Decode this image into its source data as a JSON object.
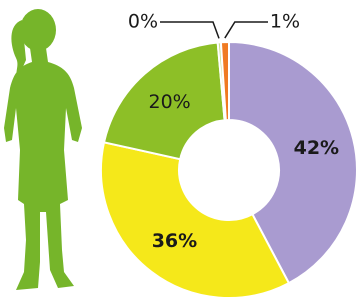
{
  "chart_data": {
    "type": "donut",
    "categories": [
      null,
      null,
      null,
      null,
      null
    ],
    "values": [
      42,
      36,
      20,
      0.4,
      1
    ],
    "value_labels": [
      "42%",
      "36%",
      "20%",
      "0%",
      "1%"
    ],
    "colors": [
      "#a99bd0",
      "#f5e81a",
      "#8dbf27",
      "#c8df90",
      "#f07a22"
    ]
  }
}
